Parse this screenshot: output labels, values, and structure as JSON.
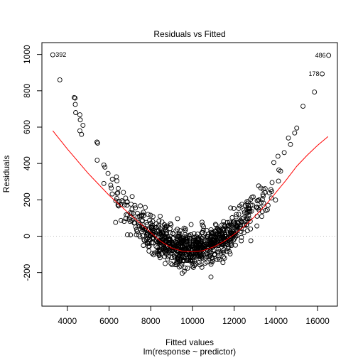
{
  "chart_data": {
    "type": "scatter",
    "title": "Residuals vs Fitted",
    "xlabel": "Fitted values",
    "xlabel_sub": "lm(response ~ predictor)",
    "ylabel": "Residuals",
    "xlim": [
      2780,
      16950
    ],
    "ylim": [
      -385,
      1065
    ],
    "xticks": [
      4000,
      6000,
      8000,
      10000,
      12000,
      14000,
      16000
    ],
    "yticks": [
      -200,
      0,
      200,
      400,
      600,
      800,
      1000
    ],
    "reference_line": {
      "y": 0,
      "style": "dotted",
      "color": "#bdbdbd"
    },
    "point_color": "#000000",
    "smooth_color": "#ff0000",
    "labeled_points": [
      {
        "label": "392",
        "x": 3300,
        "y": 998,
        "side": "right"
      },
      {
        "label": "486",
        "x": 16530,
        "y": 995,
        "side": "left"
      },
      {
        "label": "178",
        "x": 16220,
        "y": 893,
        "side": "left"
      }
    ],
    "points_listed": [
      {
        "x": 3640,
        "y": 860
      },
      {
        "x": 4330,
        "y": 763
      },
      {
        "x": 4370,
        "y": 760
      },
      {
        "x": 4380,
        "y": 725
      },
      {
        "x": 4400,
        "y": 680
      },
      {
        "x": 4600,
        "y": 668
      },
      {
        "x": 4620,
        "y": 640
      },
      {
        "x": 4750,
        "y": 610
      },
      {
        "x": 4600,
        "y": 580
      },
      {
        "x": 4680,
        "y": 560
      },
      {
        "x": 5420,
        "y": 518
      },
      {
        "x": 5450,
        "y": 512
      },
      {
        "x": 5430,
        "y": 418
      },
      {
        "x": 5750,
        "y": 392
      },
      {
        "x": 5800,
        "y": 380
      },
      {
        "x": 5950,
        "y": 345
      },
      {
        "x": 5750,
        "y": 290
      },
      {
        "x": 6080,
        "y": 280
      },
      {
        "x": 6150,
        "y": 232
      },
      {
        "x": 15300,
        "y": 715
      },
      {
        "x": 15850,
        "y": 793
      },
      {
        "x": 15000,
        "y": 595
      },
      {
        "x": 14900,
        "y": 568
      },
      {
        "x": 14600,
        "y": 540
      },
      {
        "x": 14700,
        "y": 505
      },
      {
        "x": 14100,
        "y": 440
      },
      {
        "x": 13900,
        "y": 405
      },
      {
        "x": 14400,
        "y": 460
      },
      {
        "x": 12800,
        "y": -25
      }
    ],
    "cloud": {
      "x_range": [
        6100,
        14400
      ],
      "n_points": 880,
      "trend": "parabola through (6200,240), (10000,-75), (14200,370)",
      "spread_sd": 50,
      "x_sd": 1750,
      "x_center": 10050
    },
    "smooth_curve": [
      {
        "x": 3300,
        "y": 580
      },
      {
        "x": 4000,
        "y": 480
      },
      {
        "x": 5000,
        "y": 345
      },
      {
        "x": 6000,
        "y": 225
      },
      {
        "x": 7000,
        "y": 120
      },
      {
        "x": 8000,
        "y": 20
      },
      {
        "x": 8500,
        "y": -30
      },
      {
        "x": 9000,
        "y": -65
      },
      {
        "x": 9500,
        "y": -82
      },
      {
        "x": 10000,
        "y": -85
      },
      {
        "x": 10500,
        "y": -80
      },
      {
        "x": 11000,
        "y": -60
      },
      {
        "x": 11500,
        "y": -30
      },
      {
        "x": 12000,
        "y": 10
      },
      {
        "x": 12500,
        "y": 55
      },
      {
        "x": 13000,
        "y": 110
      },
      {
        "x": 13500,
        "y": 170
      },
      {
        "x": 14000,
        "y": 240
      },
      {
        "x": 14500,
        "y": 310
      },
      {
        "x": 15000,
        "y": 385
      },
      {
        "x": 15500,
        "y": 445
      },
      {
        "x": 16000,
        "y": 500
      },
      {
        "x": 16500,
        "y": 548
      }
    ]
  }
}
